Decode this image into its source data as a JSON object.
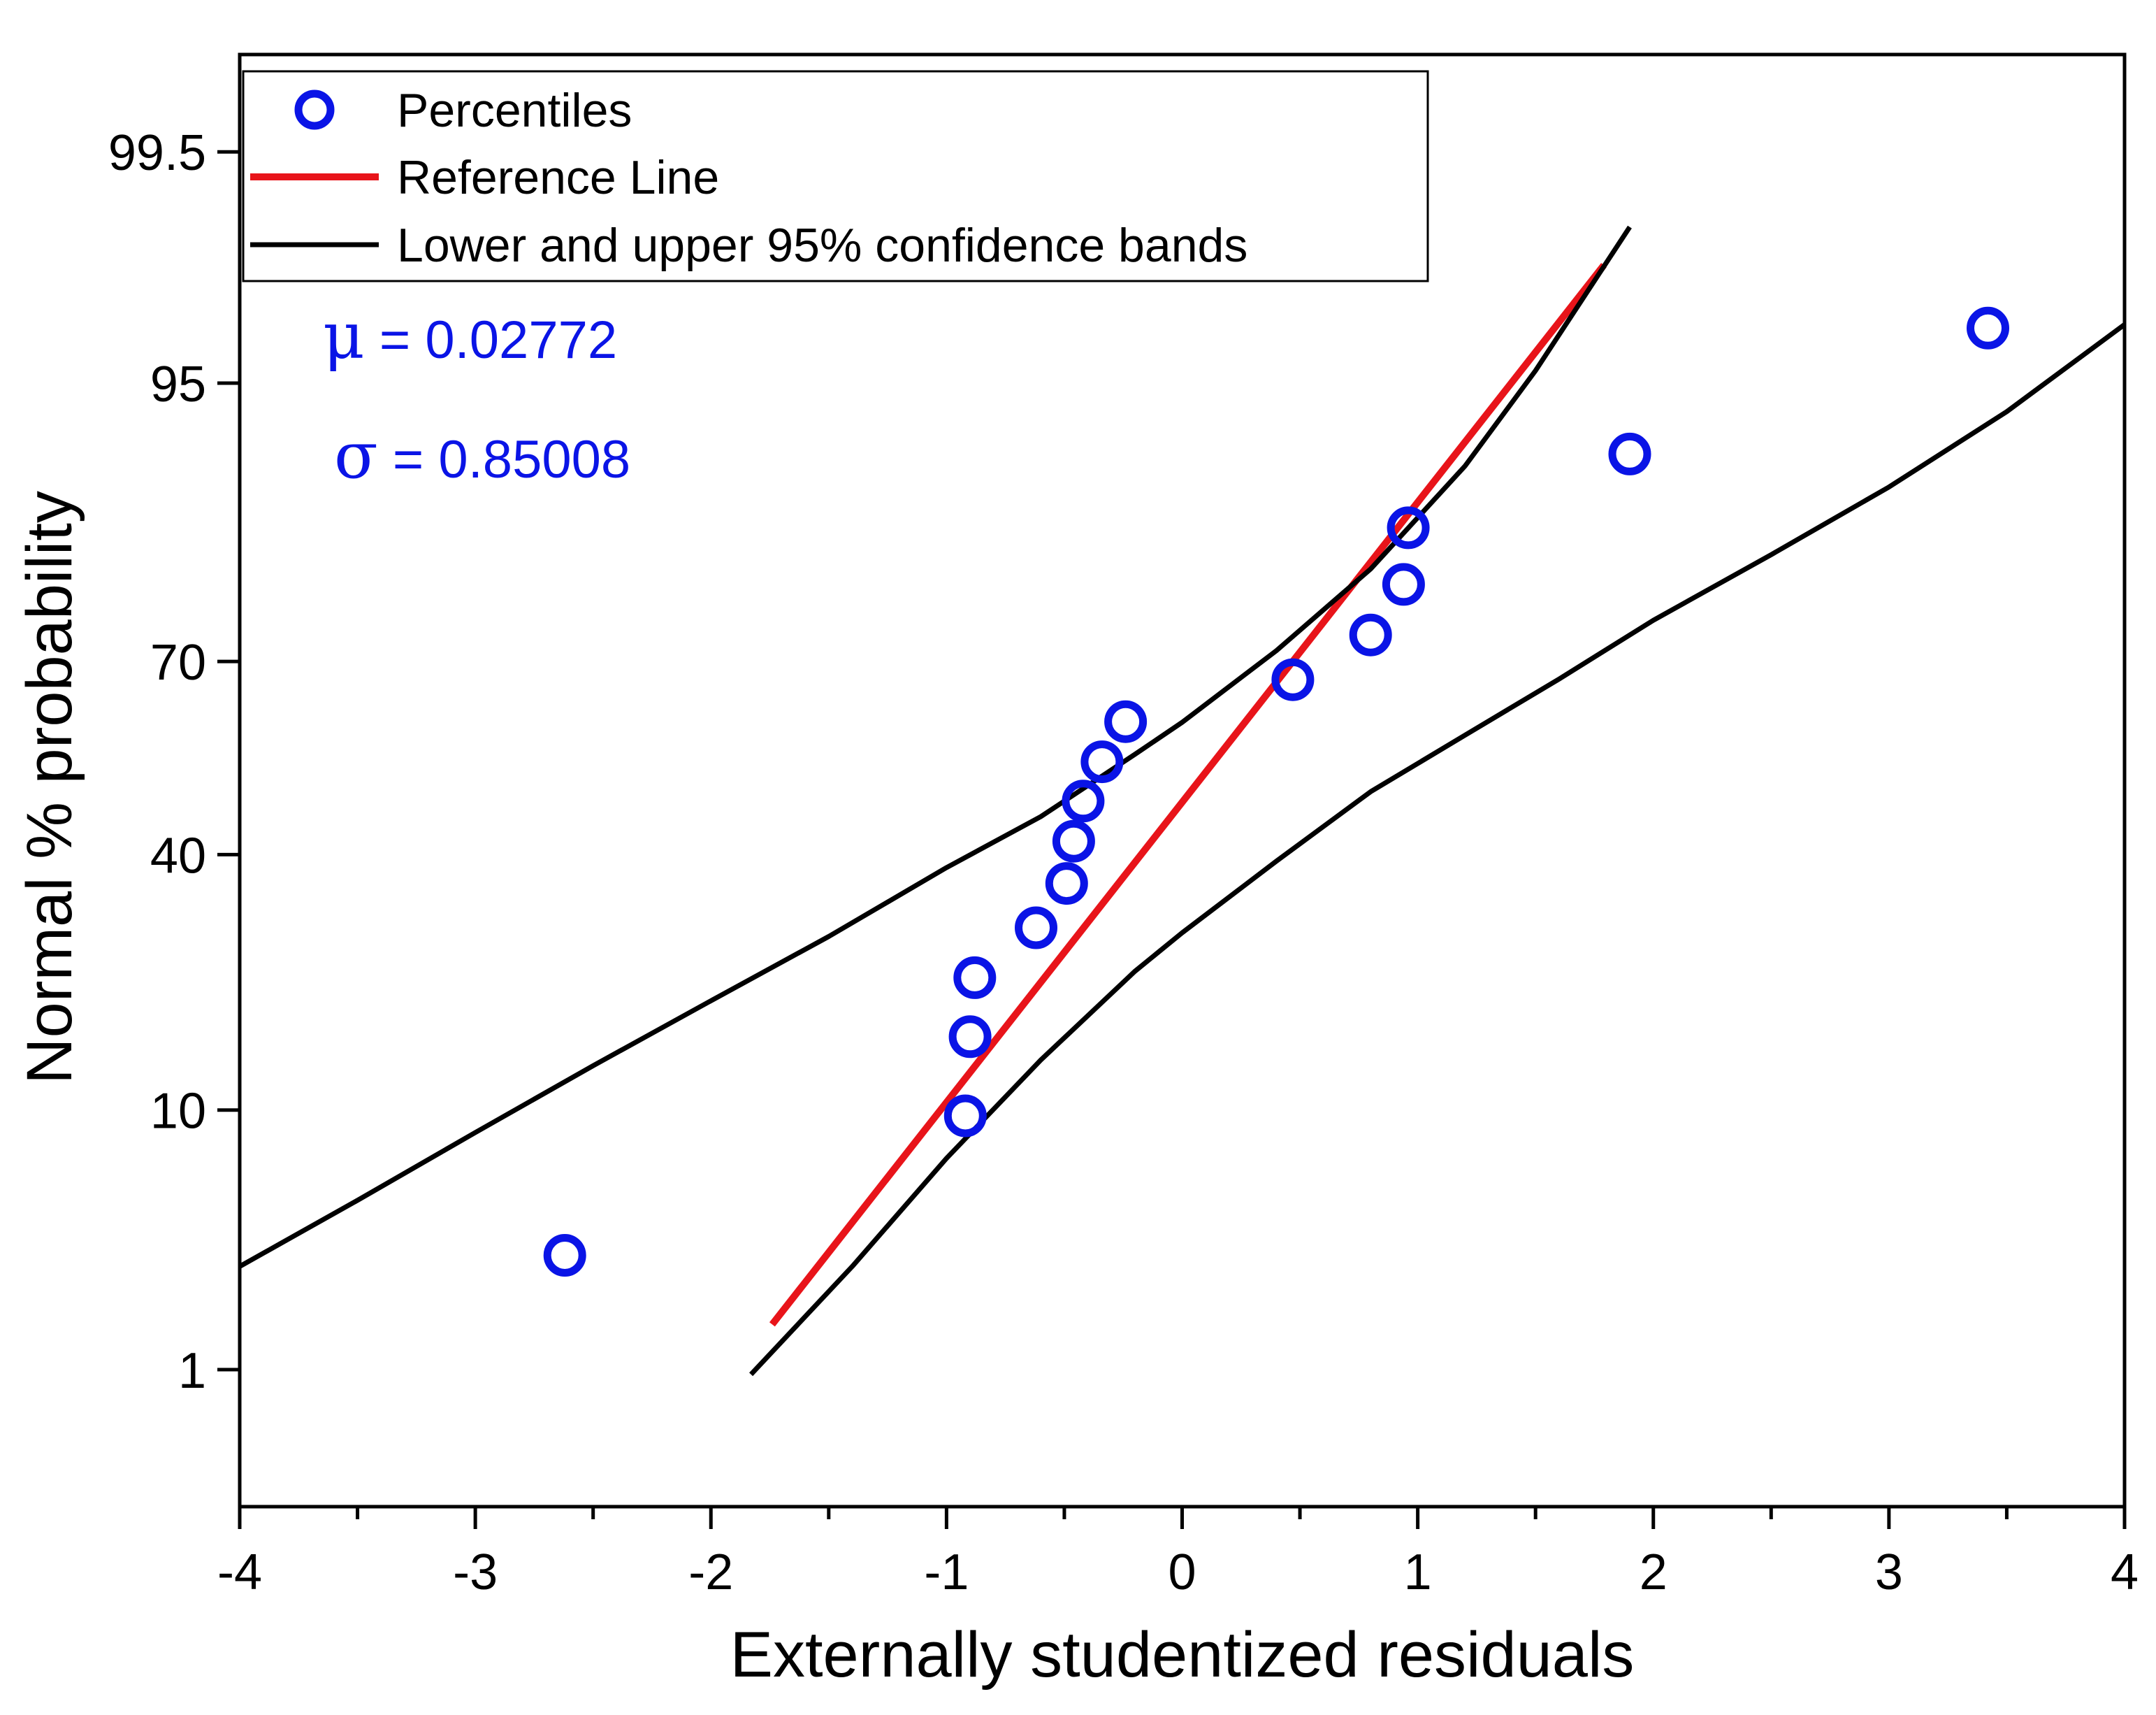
{
  "chart_data": {
    "type": "scatter",
    "title": "",
    "xlabel": "Externally studentized residuals",
    "ylabel": "Normal % probability",
    "xlim": [
      -4,
      4
    ],
    "x_ticks": [
      -4,
      -3,
      -2,
      -1,
      0,
      1,
      2,
      3,
      4
    ],
    "x_tick_labels": [
      "-4",
      "-3",
      "-2",
      "-1",
      "0",
      "1",
      "2",
      "3",
      "4"
    ],
    "y_scale": "normal-probability",
    "ylim_percent": [
      0.2,
      99.85
    ],
    "y_ticks": [
      1,
      10,
      40,
      70,
      95,
      99.5
    ],
    "y_tick_labels": [
      "1",
      "10",
      "40",
      "70",
      "95",
      "99.5"
    ],
    "legend": [
      {
        "label": "Percentiles",
        "type": "marker",
        "color": "#0a14e6"
      },
      {
        "label": "Reference Line",
        "type": "line",
        "color": "#e8141a"
      },
      {
        "label": "Lower and upper 95% confidence bands",
        "type": "line",
        "color": "#000000"
      }
    ],
    "annotations": [
      {
        "symbol": "μ",
        "text": " = 0.02772"
      },
      {
        "symbol": "σ",
        "text": " = 0.85008"
      }
    ],
    "series": [
      {
        "name": "Percentiles",
        "kind": "points",
        "color": "#0a14e6",
        "x": [
          -2.62,
          -0.92,
          -0.9,
          -0.88,
          -0.62,
          -0.49,
          -0.46,
          -0.42,
          -0.34,
          -0.24,
          0.47,
          0.8,
          0.94,
          0.96,
          1.9,
          3.42
        ],
        "y": [
          3.1,
          9.6,
          16.2,
          22.7,
          29.2,
          35.6,
          42.1,
          48.5,
          54.8,
          61.1,
          67.4,
          73.6,
          79.8,
          85.6,
          91.3,
          96.9
        ]
      },
      {
        "name": "Reference Line",
        "kind": "line",
        "color": "#e8141a",
        "x": [
          -1.74,
          1.79
        ],
        "y": [
          1.6,
          98.3
        ]
      },
      {
        "name": "Lower 95% confidence band",
        "kind": "line",
        "color": "#000000",
        "x": [
          -1.83,
          -1.4,
          -1.0,
          -0.6,
          -0.2,
          0.0,
          0.4,
          0.8,
          1.2,
          1.6,
          2.0,
          2.5,
          3.0,
          3.5,
          4.0
        ],
        "y": [
          0.95,
          2.8,
          7.0,
          14.0,
          23.5,
          28.5,
          39.0,
          50.0,
          59.0,
          67.5,
          75.5,
          83.0,
          89.0,
          93.7,
          97.0
        ]
      },
      {
        "name": "Upper 95% confidence band",
        "kind": "line",
        "color": "#000000",
        "x": [
          -4.0,
          -3.5,
          -3.0,
          -2.5,
          -2.0,
          -1.5,
          -1.0,
          -0.6,
          -0.2,
          0.0,
          0.4,
          0.8,
          1.2,
          1.5,
          1.9
        ],
        "y": [
          2.8,
          5.0,
          8.5,
          13.5,
          20.0,
          28.0,
          38.0,
          46.0,
          56.0,
          61.0,
          71.5,
          81.5,
          90.5,
          95.5,
          98.85
        ]
      }
    ]
  }
}
